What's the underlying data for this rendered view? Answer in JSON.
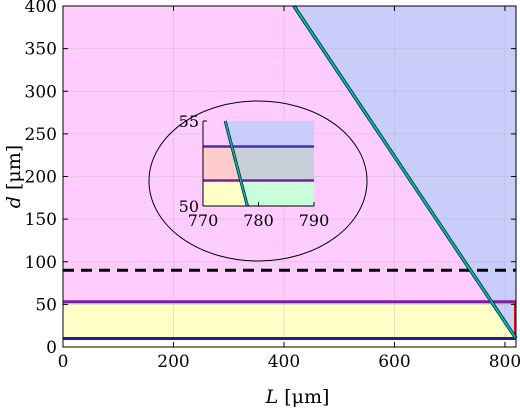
{
  "chart_data": {
    "type": "area",
    "xlabel": {
      "var": "L",
      "unit": "[μm]"
    },
    "ylabel": {
      "var": "d",
      "unit": "[μm]"
    },
    "xlim": [
      0,
      820
    ],
    "ylim": [
      0,
      400
    ],
    "xticks": [
      "0",
      "200",
      "400",
      "600",
      "800"
    ],
    "yticks": [
      "0",
      "50",
      "100",
      "150",
      "200",
      "250",
      "300",
      "350",
      "400"
    ],
    "grid": true,
    "regions": [
      {
        "name": "",
        "color": "#ffccff",
        "role": "left-of-boundary above upper line"
      },
      {
        "name": "",
        "color": "#c8cdfa",
        "role": "right-of-boundary"
      },
      {
        "name": "",
        "color": "#ffffc8",
        "role": "between lower and upper lines"
      }
    ],
    "diagonal_boundary": {
      "x": [
        418,
        820
      ],
      "y": [
        400,
        10
      ],
      "color": "#00b3b3"
    },
    "lines": [
      {
        "name": "",
        "y": 90,
        "x": [
          0,
          820
        ],
        "style": "dashed",
        "color": "#000000"
      },
      {
        "name": "",
        "y": 53,
        "x": [
          0,
          820
        ],
        "style": "solid",
        "color": "#7a1fa2"
      },
      {
        "name": "",
        "y": 10,
        "x": [
          0,
          820
        ],
        "style": "solid",
        "color": "#1f1f9e"
      }
    ],
    "inset": {
      "xlim": [
        770,
        790
      ],
      "ylim": [
        50,
        55
      ],
      "xticks": [
        "770",
        "780",
        "790"
      ],
      "yticks": [
        "50",
        "55"
      ],
      "boundary": {
        "x": [
          774,
          778
        ],
        "y": [
          55,
          50
        ]
      },
      "lines": [
        {
          "y": 53.5,
          "color": "#4b2ea8"
        },
        {
          "y": 51.5,
          "color": "#7a1fa2"
        }
      ],
      "colors": {
        "blue": "#c8cdfa",
        "gray": "#c8cfd8",
        "red": "#ffcccc",
        "green": "#c8ffd8",
        "yellow": "#ffffc8",
        "pink": "#ffccff"
      }
    }
  }
}
